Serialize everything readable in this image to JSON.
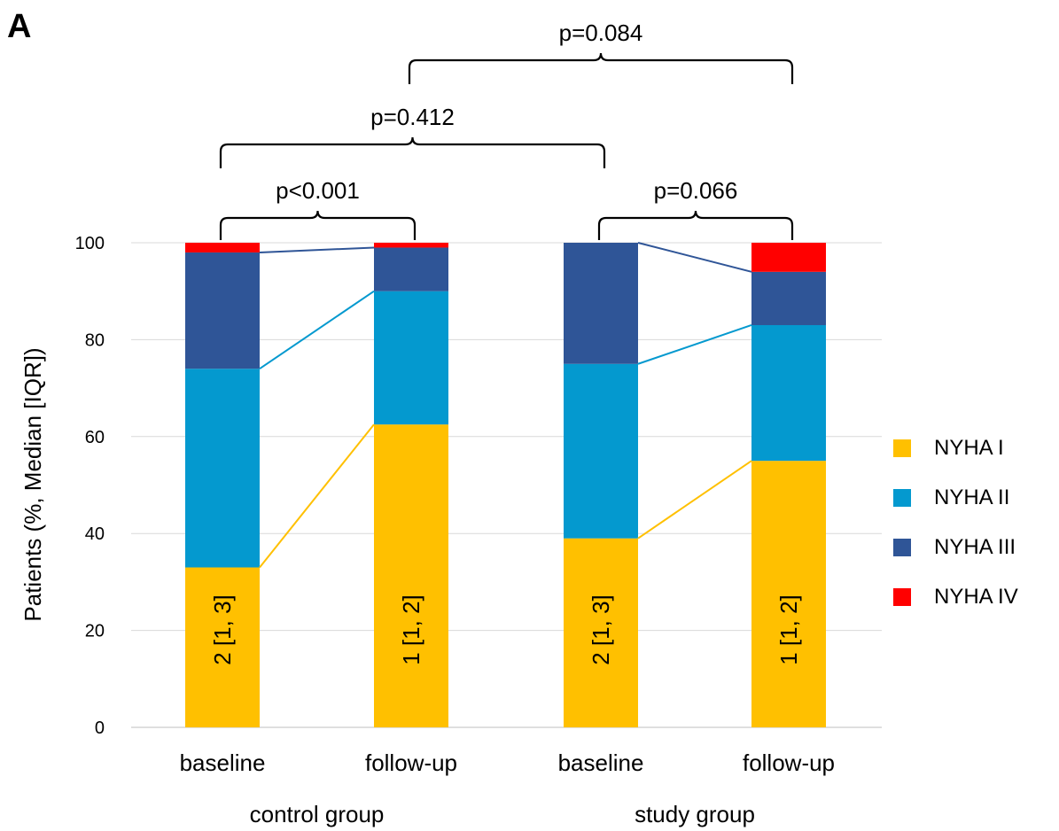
{
  "panel_label": "A",
  "chart_data": {
    "type": "bar",
    "stacked": true,
    "ylabel": "Patients (%, Median [IQR])",
    "ylim": [
      0,
      100
    ],
    "yticks": [
      0,
      20,
      40,
      60,
      80,
      100
    ],
    "grid": true,
    "legend_position": "right",
    "categories": [
      "baseline",
      "follow-up",
      "baseline",
      "follow-up"
    ],
    "groups": [
      {
        "label": "control group",
        "categories": [
          0,
          1
        ]
      },
      {
        "label": "study group",
        "categories": [
          2,
          3
        ]
      }
    ],
    "series": [
      {
        "name": "NYHA I",
        "color": "#FFC000",
        "values": [
          33,
          62.5,
          39,
          55
        ]
      },
      {
        "name": "NYHA II",
        "color": "#0499CF",
        "values": [
          41,
          27.5,
          36,
          28
        ]
      },
      {
        "name": "NYHA III",
        "color": "#2F5597",
        "values": [
          24,
          9,
          25,
          11
        ]
      },
      {
        "name": "NYHA IV",
        "color": "#FF0000",
        "values": [
          2,
          1,
          0,
          6
        ]
      }
    ],
    "bar_labels": [
      "2 [1, 3]",
      "1 [1, 2]",
      "2 [1, 3]",
      "1 [1, 2]"
    ],
    "comparisons": [
      {
        "from": 0,
        "to": 1,
        "label": "p<0.001",
        "level": 1
      },
      {
        "from": 2,
        "to": 3,
        "label": "p=0.066",
        "level": 1
      },
      {
        "from": 0,
        "to": 2,
        "label": "p=0.412",
        "level": 2
      },
      {
        "from": 1,
        "to": 3,
        "label": "p=0.084",
        "level": 3
      }
    ]
  }
}
